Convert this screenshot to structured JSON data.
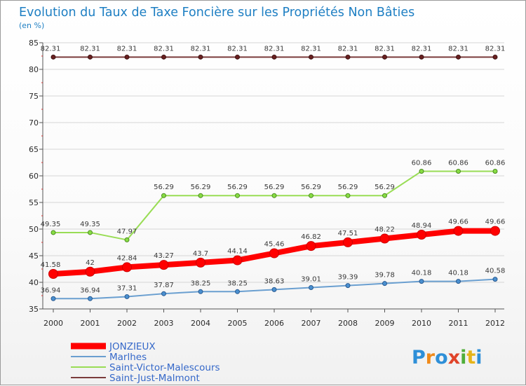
{
  "chart_data": {
    "type": "line",
    "title": "Evolution du Taux de Taxe Foncière sur les Propriétés Non Bâties",
    "ylabel": "(en %)",
    "xlabel": "",
    "categories": [
      "2000",
      "2001",
      "2002",
      "2003",
      "2004",
      "2005",
      "2006",
      "2007",
      "2008",
      "2009",
      "2010",
      "2011",
      "2012"
    ],
    "ylim": [
      35,
      85
    ],
    "yticks": [
      "35",
      "40",
      "45",
      "50",
      "55",
      "60",
      "65",
      "70",
      "75",
      "80",
      "85"
    ],
    "grid": "horizontal",
    "legend_position": "bottom-left",
    "series": [
      {
        "name": "JONZIEUX",
        "color": "#ff0000",
        "values": [
          41.58,
          42,
          42.84,
          43.27,
          43.7,
          44.14,
          45.46,
          46.82,
          47.51,
          48.22,
          48.94,
          49.66,
          49.66
        ],
        "labels": [
          "41.58",
          "42",
          "42.84",
          "43.27",
          "43.7",
          "44.14",
          "45.46",
          "46.82",
          "47.51",
          "48.22",
          "48.94",
          "49.66",
          "49.66"
        ]
      },
      {
        "name": "Marlhes",
        "color": "#6a9fd0",
        "values": [
          36.94,
          36.94,
          37.31,
          37.87,
          38.25,
          38.25,
          38.63,
          39.01,
          39.39,
          39.78,
          40.18,
          40.18,
          40.58
        ],
        "labels": [
          "36.94",
          "36.94",
          "37.31",
          "37.87",
          "38.25",
          "38.25",
          "38.63",
          "39.01",
          "39.39",
          "39.78",
          "40.18",
          "40.18",
          "40.58"
        ]
      },
      {
        "name": "Saint-Victor-Malescours",
        "color": "#99dd55",
        "values": [
          49.35,
          49.35,
          47.97,
          56.29,
          56.29,
          56.29,
          56.29,
          56.29,
          56.29,
          56.29,
          60.86,
          60.86,
          60.86
        ],
        "labels": [
          "49.35",
          "49.35",
          "47.97",
          "56.29",
          "56.29",
          "56.29",
          "56.29",
          "56.29",
          "56.29",
          "56.29",
          "60.86",
          "60.86",
          "60.86"
        ]
      },
      {
        "name": "Saint-Just-Malmont",
        "color": "#7a3b3b",
        "values": [
          82.31,
          82.31,
          82.31,
          82.31,
          82.31,
          82.31,
          82.31,
          82.31,
          82.31,
          82.31,
          82.31,
          82.31,
          82.31
        ],
        "labels": [
          "82.31",
          "82.31",
          "82.31",
          "82.31",
          "82.31",
          "82.31",
          "82.31",
          "82.31",
          "82.31",
          "82.31",
          "82.31",
          "82.31",
          "82.31"
        ]
      }
    ]
  },
  "logo": {
    "text": "Proxiti",
    "colors": [
      "#2e8fd8",
      "#f08a1a",
      "#2e8fd8",
      "#e0442a",
      "#4fae3a",
      "#e6b41a",
      "#2e8fd8"
    ]
  }
}
